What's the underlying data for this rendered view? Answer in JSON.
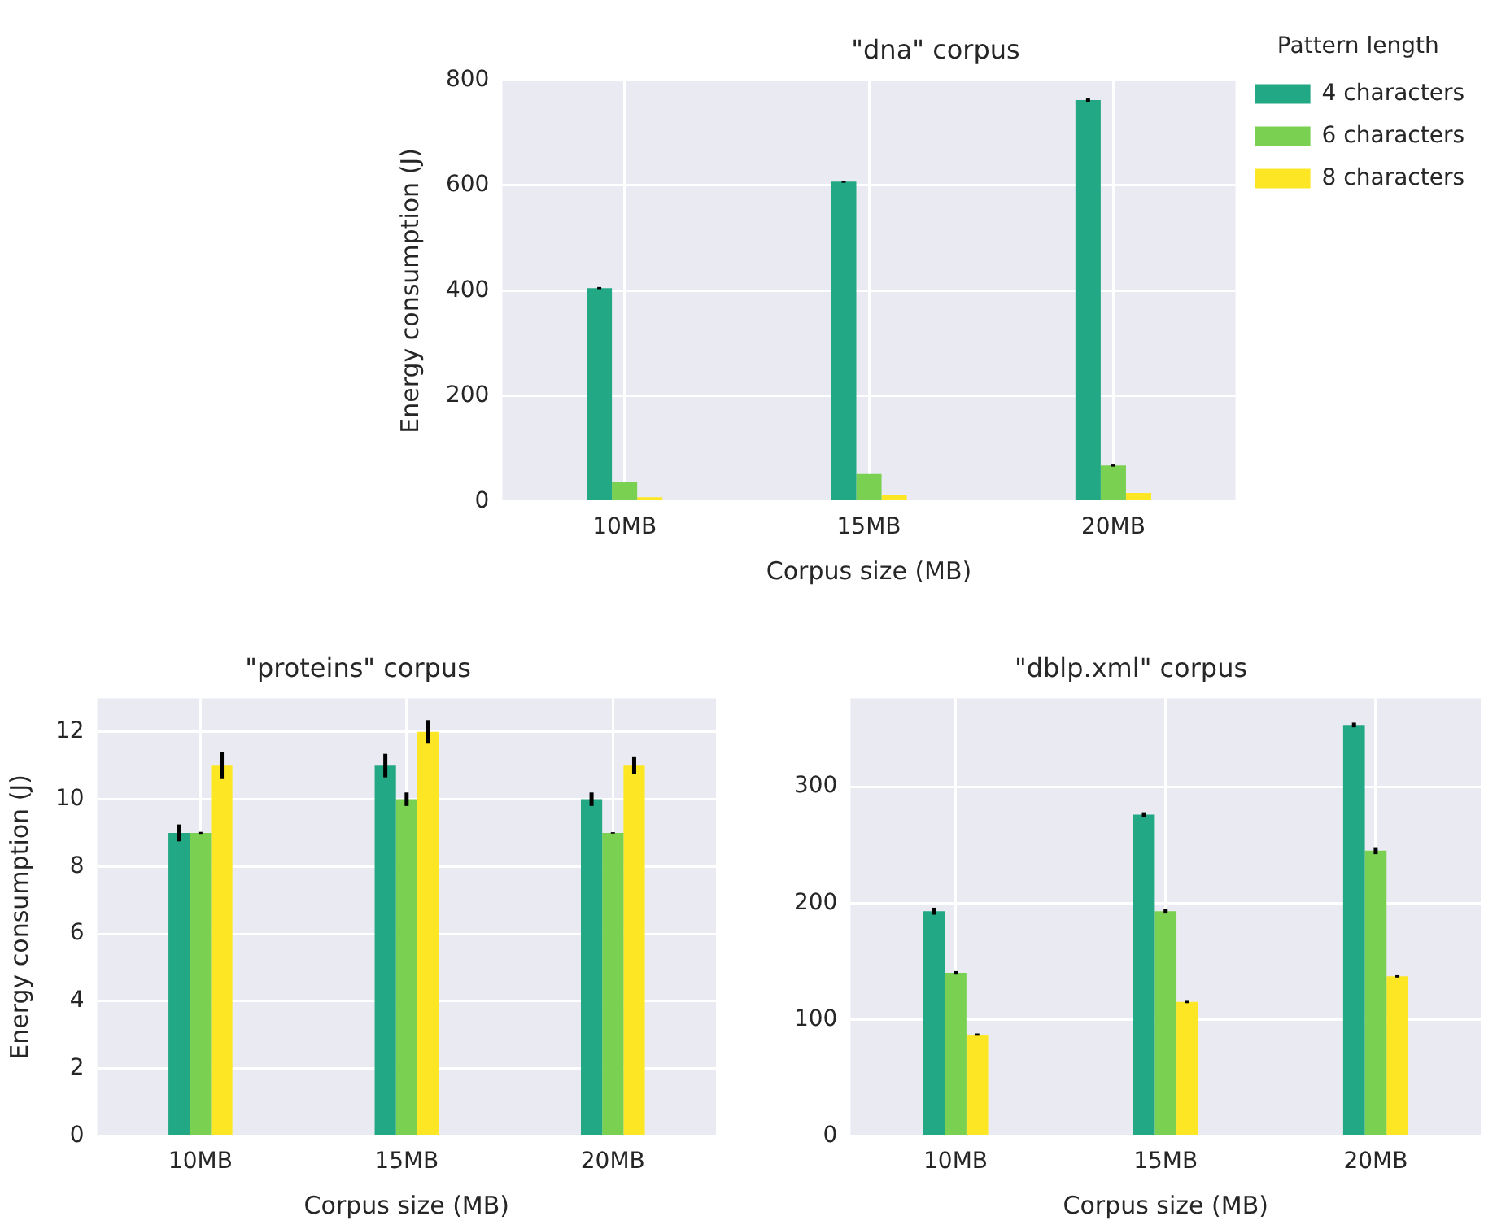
{
  "chart_data": [
    {
      "type": "bar",
      "title": "\"dna\" corpus",
      "xlabel": "Corpus size (MB)",
      "ylabel": "Energy consumption (J)",
      "legend_title": "Pattern length",
      "categories": [
        "10MB",
        "15MB",
        "20MB"
      ],
      "series": [
        {
          "name": "4 characters",
          "color": "#22a884",
          "values": [
            405,
            607,
            762
          ],
          "errors": [
            2,
            2,
            3
          ]
        },
        {
          "name": "6 characters",
          "color": "#7ad151",
          "values": [
            36,
            52,
            68
          ],
          "errors": [
            null,
            null,
            2
          ]
        },
        {
          "name": "8 characters",
          "color": "#fde725",
          "values": [
            8,
            12,
            16
          ]
        }
      ],
      "ylim": [
        0,
        800
      ],
      "yticks": [
        0,
        200,
        400,
        600,
        800
      ],
      "grid": true,
      "legend": "right"
    },
    {
      "type": "bar",
      "title": "\"proteins\" corpus",
      "xlabel": "Corpus size (MB)",
      "ylabel": "Energy consumption (J)",
      "categories": [
        "10MB",
        "15MB",
        "20MB"
      ],
      "series": [
        {
          "color": "#22a884",
          "values": [
            9,
            11,
            10
          ],
          "errors": [
            0.25,
            0.35,
            0.2
          ]
        },
        {
          "color": "#7ad151",
          "values": [
            9,
            10,
            9
          ],
          "errors": [
            0.03,
            0.2,
            0.02
          ]
        },
        {
          "color": "#fde725",
          "values": [
            11,
            12,
            11
          ],
          "errors": [
            0.4,
            0.35,
            0.25
          ]
        }
      ],
      "ylim": [
        0,
        13
      ],
      "yticks": [
        0,
        2,
        4,
        6,
        8,
        10,
        12
      ],
      "grid": true
    },
    {
      "type": "bar",
      "title": "\"dblp.xml\" corpus",
      "xlabel": "Corpus size (MB)",
      "categories": [
        "10MB",
        "15MB",
        "20MB"
      ],
      "series": [
        {
          "color": "#22a884",
          "values": [
            193,
            276,
            353
          ],
          "errors": [
            3,
            2,
            2
          ]
        },
        {
          "color": "#7ad151",
          "values": [
            140,
            193,
            245
          ],
          "errors": [
            1.5,
            2,
            3
          ]
        },
        {
          "color": "#fde725",
          "values": [
            87,
            115,
            137
          ],
          "errors": [
            1,
            1,
            1
          ]
        }
      ],
      "ylim": [
        0,
        376
      ],
      "yticks": [
        0,
        100,
        200,
        300
      ],
      "grid": true
    }
  ]
}
